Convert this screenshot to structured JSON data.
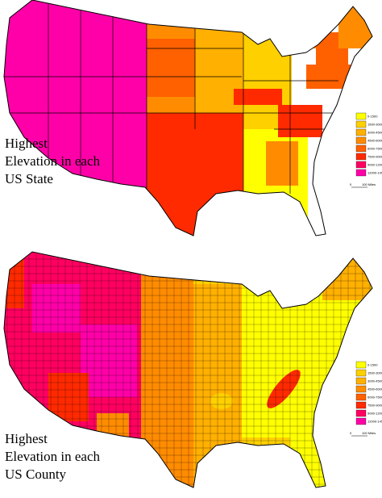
{
  "maps": [
    {
      "title_lines": [
        "Highest",
        "Elevation in each",
        "US State"
      ],
      "legend": [
        {
          "label": "0-1500",
          "color": "#ffff00"
        },
        {
          "label": "1500-3000",
          "color": "#ffd000"
        },
        {
          "label": "3000-4500",
          "color": "#ffb000"
        },
        {
          "label": "4500-6000",
          "color": "#ff8c00"
        },
        {
          "label": "6000-7500",
          "color": "#ff6000"
        },
        {
          "label": "7500-9000",
          "color": "#ff2a00"
        },
        {
          "label": "9000-12000",
          "color": "#ff0060"
        },
        {
          "label": "12000-14500",
          "color": "#ff00a8"
        }
      ],
      "scale": [
        "0",
        "100 Miles"
      ]
    },
    {
      "title_lines": [
        "Highest",
        "Elevation in each",
        "US County"
      ],
      "legend": [
        {
          "label": "0-1500",
          "color": "#ffff00"
        },
        {
          "label": "1500-3000",
          "color": "#ffd000"
        },
        {
          "label": "3000-4500",
          "color": "#ffb000"
        },
        {
          "label": "4500-6000",
          "color": "#ff8c00"
        },
        {
          "label": "6000-7500",
          "color": "#ff6000"
        },
        {
          "label": "7500-9000",
          "color": "#ff2a00"
        },
        {
          "label": "9000-12000",
          "color": "#ff0060"
        },
        {
          "label": "12000-14500",
          "color": "#ff00a8"
        }
      ],
      "scale": [
        "0",
        "100 Miles"
      ]
    }
  ]
}
